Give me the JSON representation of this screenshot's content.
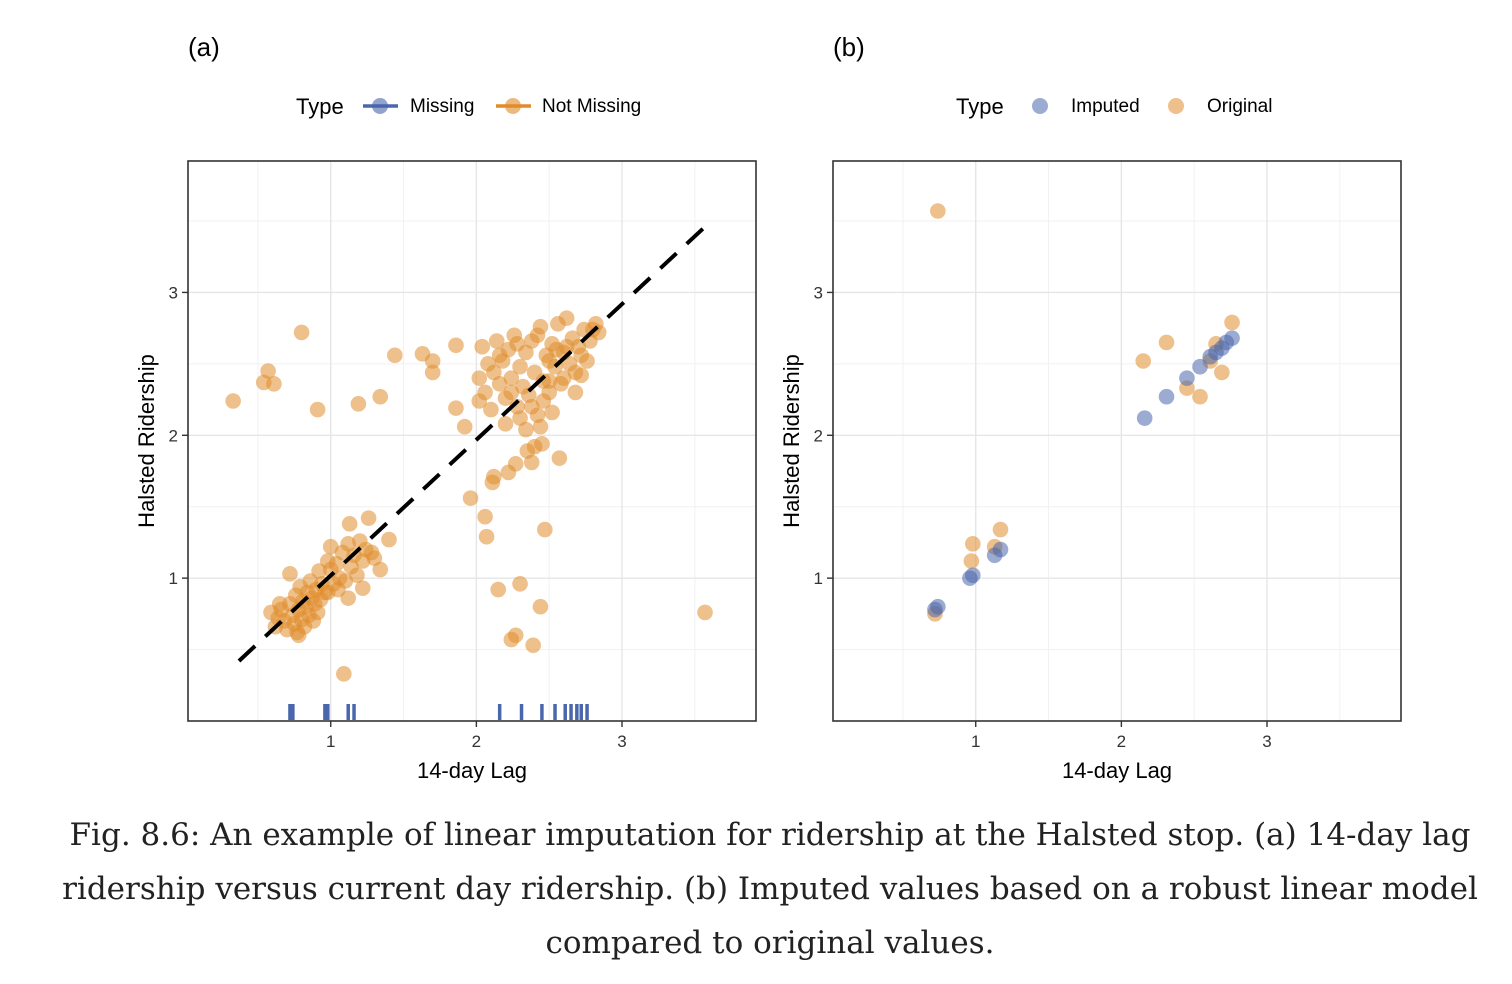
{
  "caption": "Fig. 8.6: An example of linear imputation for ridership at the Halsted stop. (a) 14-day lag ridership versus current day ridership. (b) Imputed values based on a robust linear model compared to original values.",
  "colors": {
    "missing": "#4a66ac",
    "not_missing": "#e08c2c",
    "grid": "#e6e6e6",
    "panel_border": "#333333"
  },
  "chart_data": [
    {
      "panel": "(a)",
      "type": "scatter",
      "xlabel": "14-day Lag",
      "ylabel": "Halsted Ridership",
      "xlim": [
        0.02,
        3.92
      ],
      "ylim": [
        0.0,
        3.92
      ],
      "xticks": [
        1,
        2,
        3
      ],
      "yticks": [
        1,
        2,
        3
      ],
      "grid": true,
      "legend": {
        "title": "Type",
        "position": "top",
        "entries": [
          {
            "label": "Missing",
            "color": "#4a66ac",
            "key": "line-point"
          },
          {
            "label": "Not Missing",
            "color": "#e08c2c",
            "key": "line-point"
          }
        ]
      },
      "reference_line": {
        "style": "dashed",
        "color": "#000000",
        "x": [
          0.37,
          3.57
        ],
        "y": [
          0.42,
          3.46
        ]
      },
      "rug_x": [
        0.72,
        0.74,
        0.96,
        0.98,
        1.12,
        1.16,
        2.16,
        2.31,
        2.45,
        2.54,
        2.61,
        2.65,
        2.69,
        2.72,
        2.76
      ],
      "series": [
        {
          "name": "Not Missing",
          "color": "#e08c2c",
          "points": [
            [
              0.33,
              2.24
            ],
            [
              0.54,
              2.37
            ],
            [
              0.57,
              2.45
            ],
            [
              0.61,
              2.36
            ],
            [
              0.8,
              2.72
            ],
            [
              0.91,
              2.18
            ],
            [
              1.19,
              2.22
            ],
            [
              1.34,
              2.27
            ],
            [
              1.44,
              2.56
            ],
            [
              1.63,
              2.57
            ],
            [
              1.7,
              2.52
            ],
            [
              1.7,
              2.44
            ],
            [
              1.86,
              2.63
            ],
            [
              1.86,
              2.19
            ],
            [
              1.92,
              2.06
            ],
            [
              2.02,
              2.24
            ],
            [
              1.96,
              1.56
            ],
            [
              2.06,
              1.43
            ],
            [
              2.07,
              1.29
            ],
            [
              2.11,
              1.67
            ],
            [
              2.12,
              1.71
            ],
            [
              2.22,
              1.74
            ],
            [
              2.27,
              1.8
            ],
            [
              2.38,
              1.81
            ],
            [
              2.35,
              1.89
            ],
            [
              2.4,
              1.92
            ],
            [
              2.45,
              1.94
            ],
            [
              2.57,
              1.84
            ],
            [
              2.47,
              1.34
            ],
            [
              2.15,
              0.92
            ],
            [
              2.3,
              0.96
            ],
            [
              2.44,
              0.8
            ],
            [
              2.24,
              0.57
            ],
            [
              2.27,
              0.6
            ],
            [
              2.39,
              0.53
            ],
            [
              3.57,
              0.76
            ],
            [
              1.09,
              0.33
            ],
            [
              0.59,
              0.76
            ],
            [
              0.62,
              0.66
            ],
            [
              0.64,
              0.72
            ],
            [
              0.66,
              0.78
            ],
            [
              0.68,
              0.7
            ],
            [
              0.7,
              0.64
            ],
            [
              0.72,
              0.82
            ],
            [
              0.72,
              1.03
            ],
            [
              0.74,
              0.74
            ],
            [
              0.75,
              0.68
            ],
            [
              0.76,
              0.88
            ],
            [
              0.77,
              0.62
            ],
            [
              0.78,
              0.78
            ],
            [
              0.79,
              0.94
            ],
            [
              0.8,
              0.71
            ],
            [
              0.81,
              0.84
            ],
            [
              0.82,
              0.66
            ],
            [
              0.83,
              0.8
            ],
            [
              0.84,
              0.9
            ],
            [
              0.85,
              0.74
            ],
            [
              0.86,
              0.98
            ],
            [
              0.87,
              0.86
            ],
            [
              0.88,
              0.7
            ],
            [
              0.89,
              0.82
            ],
            [
              0.9,
              0.92
            ],
            [
              0.91,
              0.76
            ],
            [
              0.92,
              1.05
            ],
            [
              0.93,
              0.85
            ],
            [
              0.94,
              0.96
            ],
            [
              0.96,
              0.9
            ],
            [
              0.98,
              1.12
            ],
            [
              1.0,
              1.06
            ],
            [
              1.0,
              1.22
            ],
            [
              1.02,
              0.96
            ],
            [
              1.04,
              1.1
            ],
            [
              1.06,
              1.0
            ],
            [
              1.08,
              1.18
            ],
            [
              1.1,
              0.98
            ],
            [
              1.12,
              1.24
            ],
            [
              1.13,
              1.38
            ],
            [
              1.14,
              1.08
            ],
            [
              1.16,
              1.16
            ],
            [
              1.18,
              1.02
            ],
            [
              1.2,
              1.26
            ],
            [
              1.22,
              1.12
            ],
            [
              1.24,
              1.2
            ],
            [
              1.26,
              1.42
            ],
            [
              1.28,
              1.18
            ],
            [
              1.3,
              1.14
            ],
            [
              1.34,
              1.06
            ],
            [
              1.4,
              1.27
            ],
            [
              1.12,
              0.86
            ],
            [
              1.05,
              0.92
            ],
            [
              0.98,
              0.9
            ],
            [
              0.65,
              0.82
            ],
            [
              0.78,
              0.6
            ],
            [
              1.22,
              0.93
            ],
            [
              2.02,
              2.4
            ],
            [
              2.04,
              2.62
            ],
            [
              2.06,
              2.3
            ],
            [
              2.08,
              2.5
            ],
            [
              2.1,
              2.18
            ],
            [
              2.12,
              2.44
            ],
            [
              2.14,
              2.66
            ],
            [
              2.16,
              2.36
            ],
            [
              2.18,
              2.52
            ],
            [
              2.2,
              2.26
            ],
            [
              2.22,
              2.6
            ],
            [
              2.24,
              2.4
            ],
            [
              2.26,
              2.7
            ],
            [
              2.28,
              2.2
            ],
            [
              2.3,
              2.48
            ],
            [
              2.32,
              2.34
            ],
            [
              2.34,
              2.58
            ],
            [
              2.36,
              2.28
            ],
            [
              2.38,
              2.66
            ],
            [
              2.4,
              2.44
            ],
            [
              2.42,
              2.14
            ],
            [
              2.44,
              2.76
            ],
            [
              2.46,
              2.38
            ],
            [
              2.48,
              2.56
            ],
            [
              2.5,
              2.3
            ],
            [
              2.52,
              2.64
            ],
            [
              2.54,
              2.48
            ],
            [
              2.56,
              2.78
            ],
            [
              2.58,
              2.36
            ],
            [
              2.6,
              2.58
            ],
            [
              2.62,
              2.82
            ],
            [
              2.64,
              2.5
            ],
            [
              2.66,
              2.68
            ],
            [
              2.68,
              2.44
            ],
            [
              2.7,
              2.62
            ],
            [
              2.72,
              2.56
            ],
            [
              2.74,
              2.74
            ],
            [
              2.76,
              2.52
            ],
            [
              2.78,
              2.66
            ],
            [
              2.8,
              2.74
            ],
            [
              2.82,
              2.78
            ],
            [
              2.84,
              2.72
            ],
            [
              2.3,
              2.12
            ],
            [
              2.38,
              2.2
            ],
            [
              2.46,
              2.24
            ],
            [
              2.24,
              2.3
            ],
            [
              2.5,
              2.52
            ],
            [
              2.55,
              2.6
            ],
            [
              2.6,
              2.4
            ],
            [
              2.68,
              2.3
            ],
            [
              2.2,
              2.08
            ],
            [
              2.34,
              2.04
            ],
            [
              2.44,
              2.06
            ],
            [
              2.52,
              2.16
            ],
            [
              2.16,
              2.56
            ],
            [
              2.28,
              2.64
            ],
            [
              2.42,
              2.7
            ],
            [
              2.5,
              2.38
            ],
            [
              2.62,
              2.62
            ],
            [
              2.72,
              2.42
            ]
          ]
        }
      ]
    },
    {
      "panel": "(b)",
      "type": "scatter",
      "xlabel": "14-day Lag",
      "ylabel": "Halsted Ridership",
      "xlim": [
        0.02,
        3.92
      ],
      "ylim": [
        0.0,
        3.92
      ],
      "xticks": [
        1,
        2,
        3
      ],
      "yticks": [
        1,
        2,
        3
      ],
      "grid": true,
      "legend": {
        "title": "Type",
        "position": "top",
        "entries": [
          {
            "label": "Imputed",
            "color": "#4a66ac",
            "key": "point"
          },
          {
            "label": "Original",
            "color": "#e08c2c",
            "key": "point"
          }
        ]
      },
      "series": [
        {
          "name": "Original",
          "color": "#e08c2c",
          "points": [
            [
              0.74,
              3.57
            ],
            [
              0.72,
              0.75
            ],
            [
              0.97,
              1.12
            ],
            [
              0.98,
              1.24
            ],
            [
              1.13,
              1.22
            ],
            [
              1.17,
              1.34
            ],
            [
              2.15,
              2.52
            ],
            [
              2.31,
              2.65
            ],
            [
              2.45,
              2.33
            ],
            [
              2.54,
              2.27
            ],
            [
              2.61,
              2.52
            ],
            [
              2.65,
              2.64
            ],
            [
              2.69,
              2.44
            ],
            [
              2.76,
              2.79
            ]
          ]
        },
        {
          "name": "Imputed",
          "color": "#4a66ac",
          "points": [
            [
              0.72,
              0.78
            ],
            [
              0.74,
              0.8
            ],
            [
              0.96,
              1.0
            ],
            [
              0.98,
              1.02
            ],
            [
              1.13,
              1.16
            ],
            [
              1.17,
              1.2
            ],
            [
              2.16,
              2.12
            ],
            [
              2.31,
              2.27
            ],
            [
              2.45,
              2.4
            ],
            [
              2.54,
              2.48
            ],
            [
              2.61,
              2.55
            ],
            [
              2.65,
              2.58
            ],
            [
              2.69,
              2.61
            ],
            [
              2.72,
              2.65
            ],
            [
              2.76,
              2.68
            ]
          ]
        }
      ]
    }
  ]
}
